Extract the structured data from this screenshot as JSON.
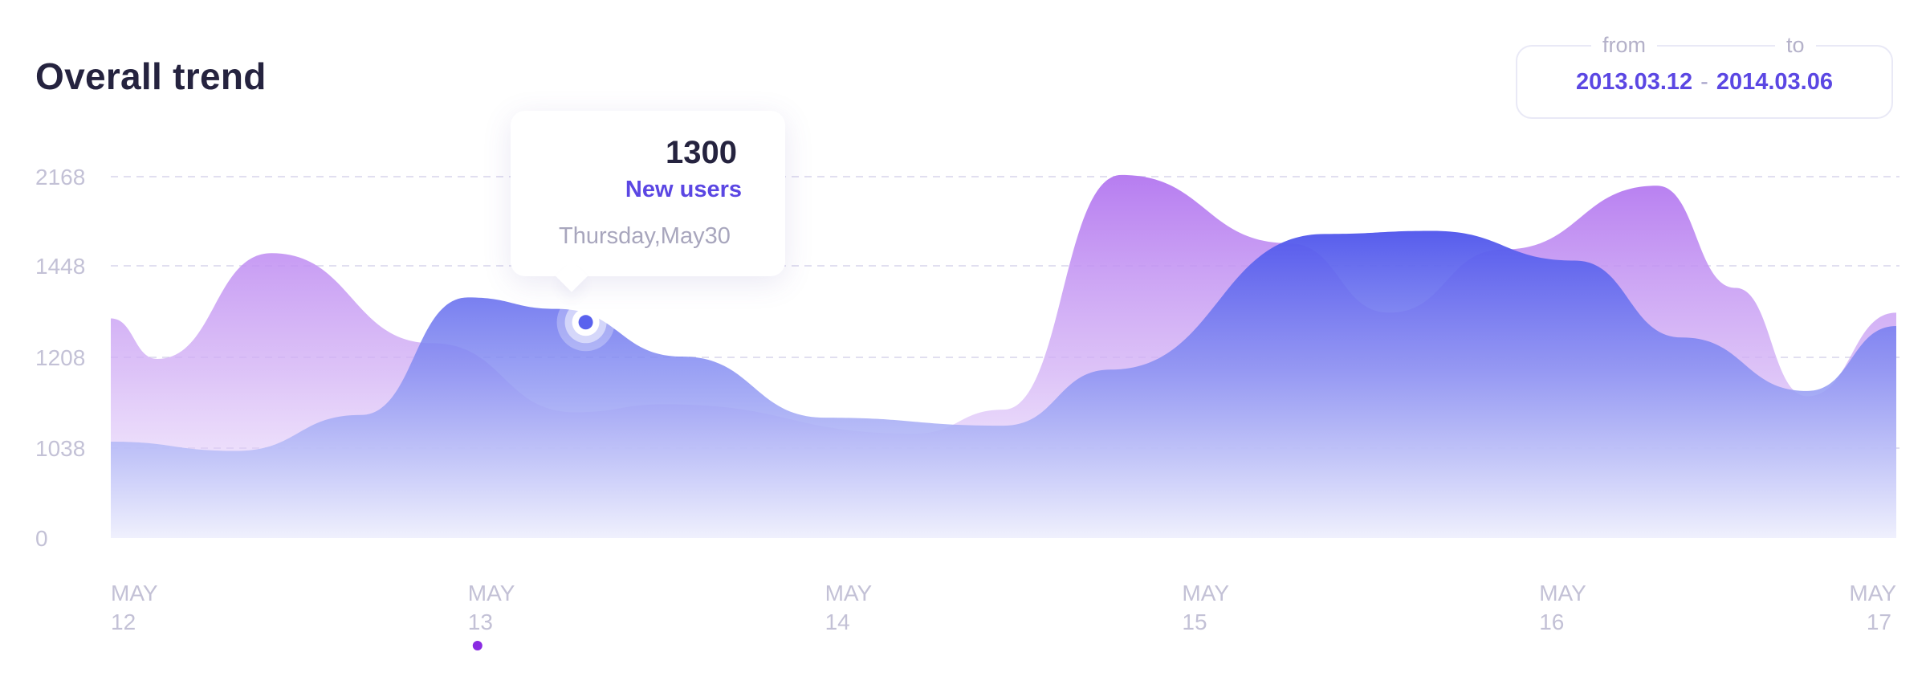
{
  "header": {
    "title": "Overall trend"
  },
  "date_range": {
    "from_label": "from",
    "to_label": "to",
    "from": "2013.03.12",
    "separator": "-",
    "to": "2014.03.06"
  },
  "tooltip": {
    "value": "1300",
    "label": "New users",
    "date": "Thursday,May30"
  },
  "colors": {
    "purple_series": "#b57af0",
    "blue_series": "#5a62ee",
    "accent": "#5b47e3",
    "active_dot": "#8a2be2",
    "grid": "#e1dff0",
    "tick_text": "#c3c1d6",
    "title": "#25233f"
  },
  "chart_data": {
    "type": "area",
    "title": "Overall trend",
    "xlabel": "",
    "ylabel": "",
    "y_ticks": [
      "2168",
      "1448",
      "1208",
      "1038",
      "0"
    ],
    "x_ticks": [
      {
        "line1": "MAY",
        "line2": "12"
      },
      {
        "line1": "MAY",
        "line2": "13"
      },
      {
        "line1": "MAY",
        "line2": "14"
      },
      {
        "line1": "MAY",
        "line2": "15"
      },
      {
        "line1": "MAY",
        "line2": "16"
      },
      {
        "line1": "MAY",
        "line2": "17"
      }
    ],
    "grid": "dashed horizontal",
    "x_range": [
      12,
      17
    ],
    "active_x_tick": 1,
    "series": [
      {
        "color": "#b57af0",
        "points": [
          [
            12.0,
            1310
          ],
          [
            12.13,
            1205
          ],
          [
            12.45,
            1550
          ],
          [
            12.9,
            1245
          ],
          [
            13.3,
            1105
          ],
          [
            13.55,
            1120
          ],
          [
            14.25,
            1065
          ],
          [
            14.5,
            1110
          ],
          [
            14.83,
            2182
          ],
          [
            15.3,
            1630
          ],
          [
            15.58,
            1325
          ],
          [
            15.9,
            1580
          ],
          [
            16.33,
            2095
          ],
          [
            16.55,
            1390
          ],
          [
            16.75,
            1135
          ],
          [
            17.0,
            1325
          ]
        ]
      },
      {
        "color": "#5a62ee",
        "points": [
          [
            12.0,
            1050
          ],
          [
            12.35,
            1005
          ],
          [
            12.7,
            1100
          ],
          [
            13.0,
            1365
          ],
          [
            13.25,
            1335
          ],
          [
            13.6,
            1210
          ],
          [
            14.0,
            1095
          ],
          [
            14.5,
            1080
          ],
          [
            14.8,
            1185
          ],
          [
            15.4,
            1705
          ],
          [
            15.7,
            1730
          ],
          [
            16.1,
            1490
          ],
          [
            16.4,
            1260
          ],
          [
            16.75,
            1145
          ],
          [
            17.0,
            1290
          ]
        ]
      }
    ],
    "highlight": {
      "x": 13.33,
      "y": 1300
    }
  }
}
